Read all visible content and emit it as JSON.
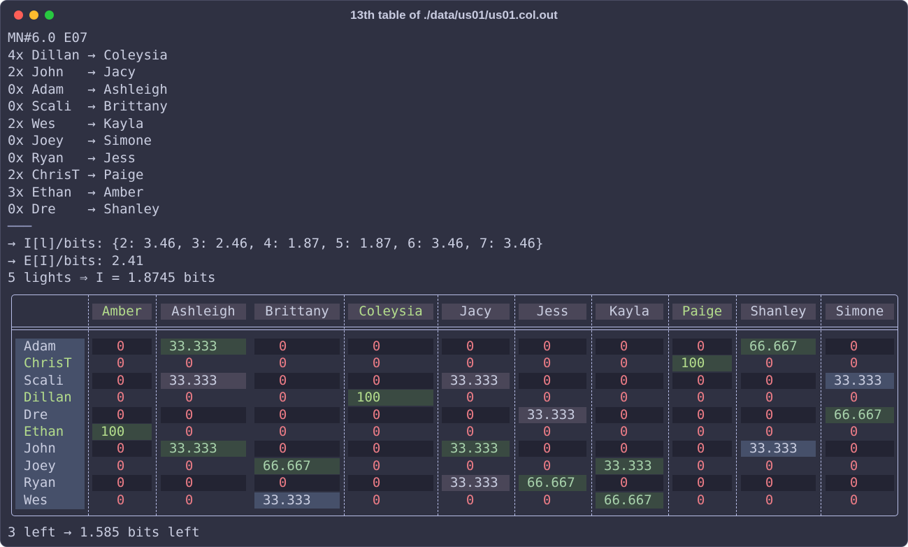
{
  "window": {
    "title": "13th table of ./data/us01/us01.col.out"
  },
  "header_lines": [
    "MN#6.0 E07",
    "4x Dillan → Coleysia",
    "2x John   → Jacy",
    "0x Adam   → Ashleigh",
    "0x Scali  → Brittany",
    "2x Wes    → Kayla",
    "0x Joey   → Simone",
    "0x Ryan   → Jess",
    "2x ChrisT → Paige",
    "3x Ethan  → Amber",
    "0x Dre    → Shanley",
    "───",
    "→ I[l]/bits: {2: 3.46, 3: 2.46, 4: 1.87, 5: 1.87, 6: 3.46, 7: 3.46}",
    "→ E[I]/bits: 2.41",
    "5 lights ⇒ I = 1.8745 bits"
  ],
  "table": {
    "columns": [
      "Amber",
      "Ashleigh",
      "Brittany",
      "Coleysia",
      "Jacy",
      "Jess",
      "Kayla",
      "Paige",
      "Shanley",
      "Simone"
    ],
    "highlighted_columns": [
      "Amber",
      "Coleysia",
      "Paige"
    ],
    "rows": [
      "Adam",
      "ChrisT",
      "Scali",
      "Dillan",
      "Dre",
      "Ethan",
      "John",
      "Joey",
      "Ryan",
      "Wes"
    ],
    "highlighted_rows": [
      "ChrisT",
      "Dillan",
      "Ethan"
    ],
    "values": [
      [
        "0",
        "33.333",
        "0",
        "0",
        "0",
        "0",
        "0",
        "0",
        "66.667",
        "0"
      ],
      [
        "0",
        "0",
        "0",
        "0",
        "0",
        "0",
        "0",
        "100",
        "0",
        "0"
      ],
      [
        "0",
        "33.333",
        "0",
        "0",
        "33.333",
        "0",
        "0",
        "0",
        "0",
        "33.333"
      ],
      [
        "0",
        "0",
        "0",
        "100",
        "0",
        "0",
        "0",
        "0",
        "0",
        "0"
      ],
      [
        "0",
        "0",
        "0",
        "0",
        "0",
        "33.333",
        "0",
        "0",
        "0",
        "66.667"
      ],
      [
        "100",
        "0",
        "0",
        "0",
        "0",
        "0",
        "0",
        "0",
        "0",
        "0"
      ],
      [
        "0",
        "33.333",
        "0",
        "0",
        "33.333",
        "0",
        "0",
        "0",
        "33.333",
        "0"
      ],
      [
        "0",
        "0",
        "66.667",
        "0",
        "0",
        "0",
        "33.333",
        "0",
        "0",
        "0"
      ],
      [
        "0",
        "0",
        "0",
        "0",
        "33.333",
        "66.667",
        "0",
        "0",
        "0",
        "0"
      ],
      [
        "0",
        "0",
        "33.333",
        "0",
        "0",
        "0",
        "66.667",
        "0",
        "0",
        "0"
      ]
    ]
  },
  "footer": "3 left → 1.585 bits left"
}
